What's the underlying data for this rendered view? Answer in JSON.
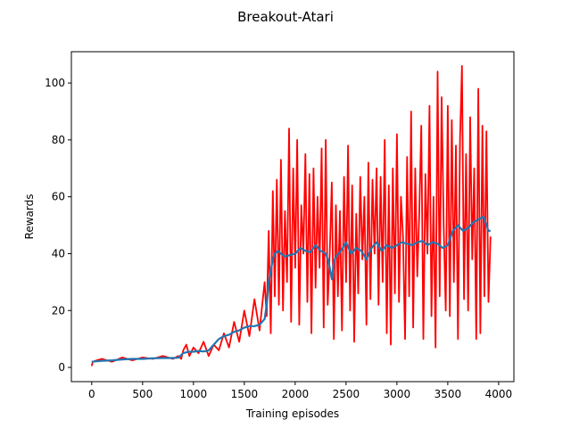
{
  "chart_data": {
    "type": "line",
    "title": "Breakout-Atari",
    "xlabel": "Training episodes",
    "ylabel": "Rewards",
    "xlim": [
      -200,
      4150
    ],
    "ylim": [
      -5,
      111
    ],
    "xticks": [
      0,
      500,
      1000,
      1500,
      2000,
      2500,
      3000,
      3500,
      4000
    ],
    "yticks": [
      0,
      20,
      40,
      60,
      80,
      100
    ],
    "grid": false,
    "colors": {
      "raw": "#ff0000",
      "smoothed": "#1f77b4"
    },
    "series": [
      {
        "role": "raw",
        "x": [
          0,
          10,
          50,
          100,
          200,
          300,
          400,
          500,
          600,
          700,
          800,
          850,
          880,
          900,
          930,
          960,
          1000,
          1050,
          1100,
          1150,
          1200,
          1250,
          1300,
          1350,
          1400,
          1450,
          1500,
          1550,
          1600,
          1650,
          1700,
          1720,
          1740,
          1760,
          1780,
          1800,
          1820,
          1840,
          1860,
          1880,
          1900,
          1920,
          1940,
          1960,
          1980,
          2000,
          2020,
          2040,
          2060,
          2080,
          2100,
          2120,
          2140,
          2160,
          2180,
          2200,
          2220,
          2240,
          2260,
          2280,
          2300,
          2320,
          2340,
          2360,
          2380,
          2400,
          2420,
          2440,
          2460,
          2480,
          2500,
          2520,
          2540,
          2560,
          2580,
          2600,
          2620,
          2640,
          2660,
          2680,
          2700,
          2720,
          2740,
          2760,
          2780,
          2800,
          2820,
          2840,
          2860,
          2880,
          2900,
          2920,
          2940,
          2960,
          2980,
          3000,
          3020,
          3040,
          3060,
          3080,
          3100,
          3120,
          3140,
          3160,
          3180,
          3200,
          3220,
          3240,
          3260,
          3280,
          3300,
          3320,
          3340,
          3360,
          3380,
          3400,
          3420,
          3440,
          3460,
          3480,
          3500,
          3520,
          3540,
          3560,
          3580,
          3600,
          3620,
          3640,
          3660,
          3680,
          3700,
          3720,
          3740,
          3760,
          3780,
          3800,
          3820,
          3840,
          3860,
          3880,
          3900,
          3920
        ],
        "y": [
          0.5,
          2,
          2.5,
          3,
          2,
          3.5,
          2.5,
          3.5,
          3,
          4,
          3,
          4,
          3,
          6,
          8,
          4,
          7,
          5,
          9,
          4,
          8,
          6,
          12,
          7,
          16,
          9,
          20,
          11,
          24,
          13,
          30,
          18,
          48,
          12,
          62,
          25,
          66,
          22,
          73,
          20,
          55,
          30,
          84,
          16,
          70,
          35,
          80,
          15,
          57,
          40,
          75,
          23,
          68,
          12,
          70,
          28,
          60,
          35,
          77,
          14,
          80,
          22,
          40,
          65,
          10,
          57,
          25,
          55,
          13,
          67,
          30,
          78,
          20,
          64,
          9,
          54,
          26,
          67,
          38,
          60,
          15,
          72,
          24,
          66,
          40,
          70,
          22,
          67,
          30,
          80,
          12,
          64,
          8,
          70,
          26,
          82,
          23,
          60,
          46,
          10,
          74,
          25,
          90,
          14,
          70,
          32,
          55,
          85,
          10,
          68,
          40,
          92,
          18,
          60,
          7,
          104,
          25,
          95,
          50,
          20,
          92,
          18,
          87,
          30,
          78,
          10,
          80,
          106,
          24,
          75,
          20,
          88,
          38,
          70,
          10,
          98,
          12,
          85,
          25,
          83,
          23,
          46
        ]
      },
      {
        "role": "smoothed",
        "x": [
          0,
          100,
          200,
          300,
          400,
          500,
          600,
          700,
          800,
          850,
          900,
          950,
          1000,
          1050,
          1100,
          1150,
          1200,
          1250,
          1300,
          1350,
          1400,
          1450,
          1500,
          1550,
          1600,
          1650,
          1700,
          1720,
          1740,
          1760,
          1780,
          1800,
          1830,
          1860,
          1900,
          1950,
          2000,
          2050,
          2100,
          2150,
          2200,
          2250,
          2300,
          2330,
          2360,
          2380,
          2400,
          2450,
          2500,
          2550,
          2600,
          2650,
          2700,
          2750,
          2800,
          2850,
          2900,
          2950,
          3000,
          3050,
          3100,
          3150,
          3200,
          3250,
          3300,
          3350,
          3400,
          3450,
          3500,
          3550,
          3600,
          3650,
          3700,
          3750,
          3800,
          3850,
          3900,
          3920
        ],
        "y": [
          2,
          2.3,
          2.5,
          2.8,
          3,
          3,
          3.2,
          3.3,
          3.3,
          3.4,
          5,
          5.5,
          5.5,
          5.8,
          5.6,
          6,
          8,
          10,
          11,
          11.5,
          12.5,
          13,
          14,
          14.5,
          14.5,
          15,
          17,
          22,
          30,
          34,
          38,
          40,
          41,
          40,
          39,
          39.5,
          40,
          42,
          41,
          40.5,
          43,
          41,
          40,
          37,
          31,
          37,
          39,
          41,
          44,
          40,
          42,
          41,
          38,
          42,
          44,
          41,
          43,
          42,
          43,
          44,
          43.5,
          43,
          44,
          44.5,
          43,
          44,
          43.5,
          42,
          43,
          48,
          50,
          48,
          49,
          51,
          52,
          53,
          48,
          48
        ]
      }
    ]
  }
}
